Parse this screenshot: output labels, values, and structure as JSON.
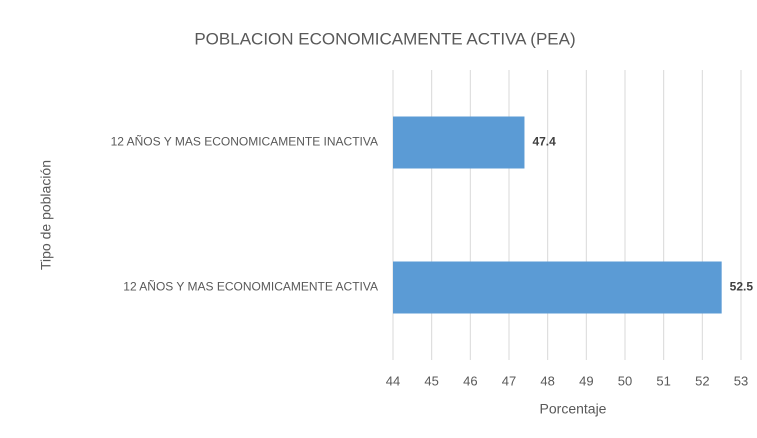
{
  "chart_data": {
    "type": "barh",
    "title": "POBLACION  ECONOMICAMENTE  ACTIVA  (PEA)",
    "categories": [
      "12 AÑOS Y MAS ECONOMICAMENTE INACTIVA",
      "12 AÑOS Y MAS ECONOMICAMENTE ACTIVA"
    ],
    "values": [
      47.4,
      52.5
    ],
    "color": "#5b9bd5",
    "xlabel": "Porcentaje",
    "ylabel": "Tipo de población",
    "xlim": [
      44,
      53
    ],
    "xticks": [
      44,
      45,
      46,
      47,
      48,
      49,
      50,
      51,
      52,
      53
    ],
    "grid": true
  }
}
